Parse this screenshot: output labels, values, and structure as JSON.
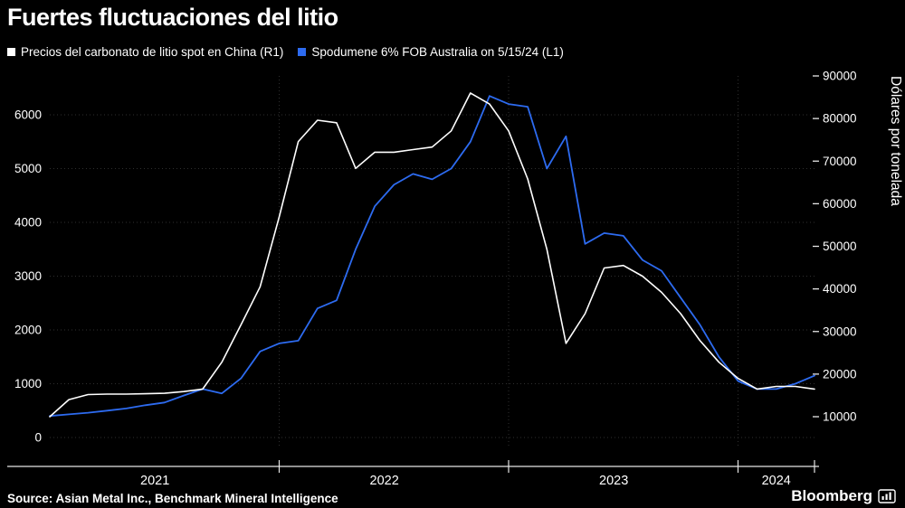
{
  "title": "Fuertes fluctuaciones del litio",
  "legend": [
    {
      "label": "Precios del carbonato de litio spot en China (R1)",
      "color": "#ffffff"
    },
    {
      "label": "Spodumene 6% FOB Australia on 5/15/24 (L1)",
      "color": "#2D6BF0"
    }
  ],
  "right_axis_title": "Dólares por tonelada",
  "source": "Source: Asian Metal Inc., Benchmark Mineral Intelligence",
  "logo_text": "Bloomberg",
  "chart_data": {
    "type": "line",
    "x_start": "2021-01",
    "x_end": "2024-05",
    "interval": "monthly",
    "x_ticks": [
      "2021",
      "2022",
      "2023",
      "2024"
    ],
    "grid": "dotted",
    "background": "#000000",
    "legend_position": "top-left",
    "left_axis": {
      "ticks": [
        0,
        1000,
        2000,
        3000,
        4000,
        5000,
        6000
      ],
      "range": [
        0,
        6700
      ]
    },
    "right_axis": {
      "ticks": [
        10000,
        20000,
        30000,
        40000,
        50000,
        60000,
        70000,
        80000,
        90000
      ],
      "range": [
        3000,
        90000
      ],
      "title": "Dólares por tonelada"
    },
    "series": [
      {
        "name": "Spodumene 6% FOB Australia on 5/15/24 (L1)",
        "axis": "left",
        "color": "#2D6BF0",
        "values": [
          400,
          430,
          460,
          500,
          540,
          600,
          650,
          780,
          900,
          820,
          1100,
          1600,
          1750,
          1800,
          2400,
          2550,
          3500,
          4300,
          4700,
          4900,
          4800,
          5000,
          5500,
          6350,
          6200,
          6150,
          5000,
          5600,
          3600,
          3800,
          3750,
          3300,
          3100,
          2600,
          2100,
          1500,
          1050,
          900,
          900,
          1000,
          1150
        ]
      },
      {
        "name": "Precios del carbonato de litio spot en China (R1)",
        "axis": "right",
        "color": "#ffffff",
        "values": [
          10000,
          14000,
          15200,
          15300,
          15300,
          15400,
          15500,
          15900,
          16500,
          22800,
          31600,
          40500,
          56900,
          74600,
          79600,
          79000,
          68300,
          72100,
          72100,
          72700,
          73300,
          77100,
          86000,
          83400,
          77100,
          65800,
          49300,
          27200,
          34200,
          44900,
          45500,
          43000,
          39200,
          34200,
          27900,
          22800,
          19000,
          16500,
          17100,
          17100,
          16500
        ]
      }
    ]
  }
}
